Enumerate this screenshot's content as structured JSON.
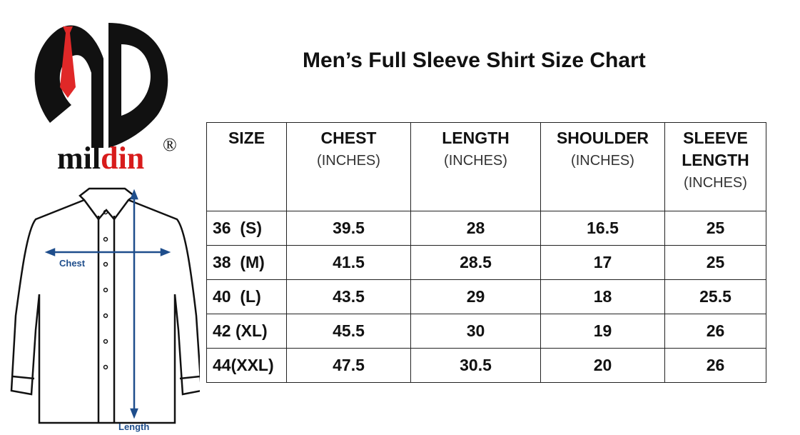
{
  "brand": {
    "name_part1": "mil",
    "name_part2": "din",
    "registered": "®",
    "monogram": "MD",
    "colors": {
      "black": "#111111",
      "red": "#d81c1c"
    }
  },
  "diagram": {
    "chest_label": "Chest",
    "length_label": "Length",
    "arrow_color": "#1f4e8c"
  },
  "title": "Men’s Full Sleeve Shirt Size Chart",
  "table": {
    "headers": [
      {
        "label": "SIZE",
        "unit": ""
      },
      {
        "label": "CHEST",
        "unit": "(INCHES)"
      },
      {
        "label": "LENGTH",
        "unit": "(INCHES)"
      },
      {
        "label": "SHOULDER",
        "unit": "(INCHES)"
      },
      {
        "label": "SLEEVE LENGTH",
        "unit": "(INCHES)"
      }
    ],
    "rows": [
      [
        "36  (S)",
        "39.5",
        "28",
        "16.5",
        "25"
      ],
      [
        "38  (M)",
        "41.5",
        "28.5",
        "17",
        "25"
      ],
      [
        "40  (L)",
        "43.5",
        "29",
        "18",
        "25.5"
      ],
      [
        "42 (XL)",
        "45.5",
        "30",
        "19",
        "26"
      ],
      [
        "44(XXL)",
        "47.5",
        "30.5",
        "20",
        "26"
      ]
    ]
  }
}
